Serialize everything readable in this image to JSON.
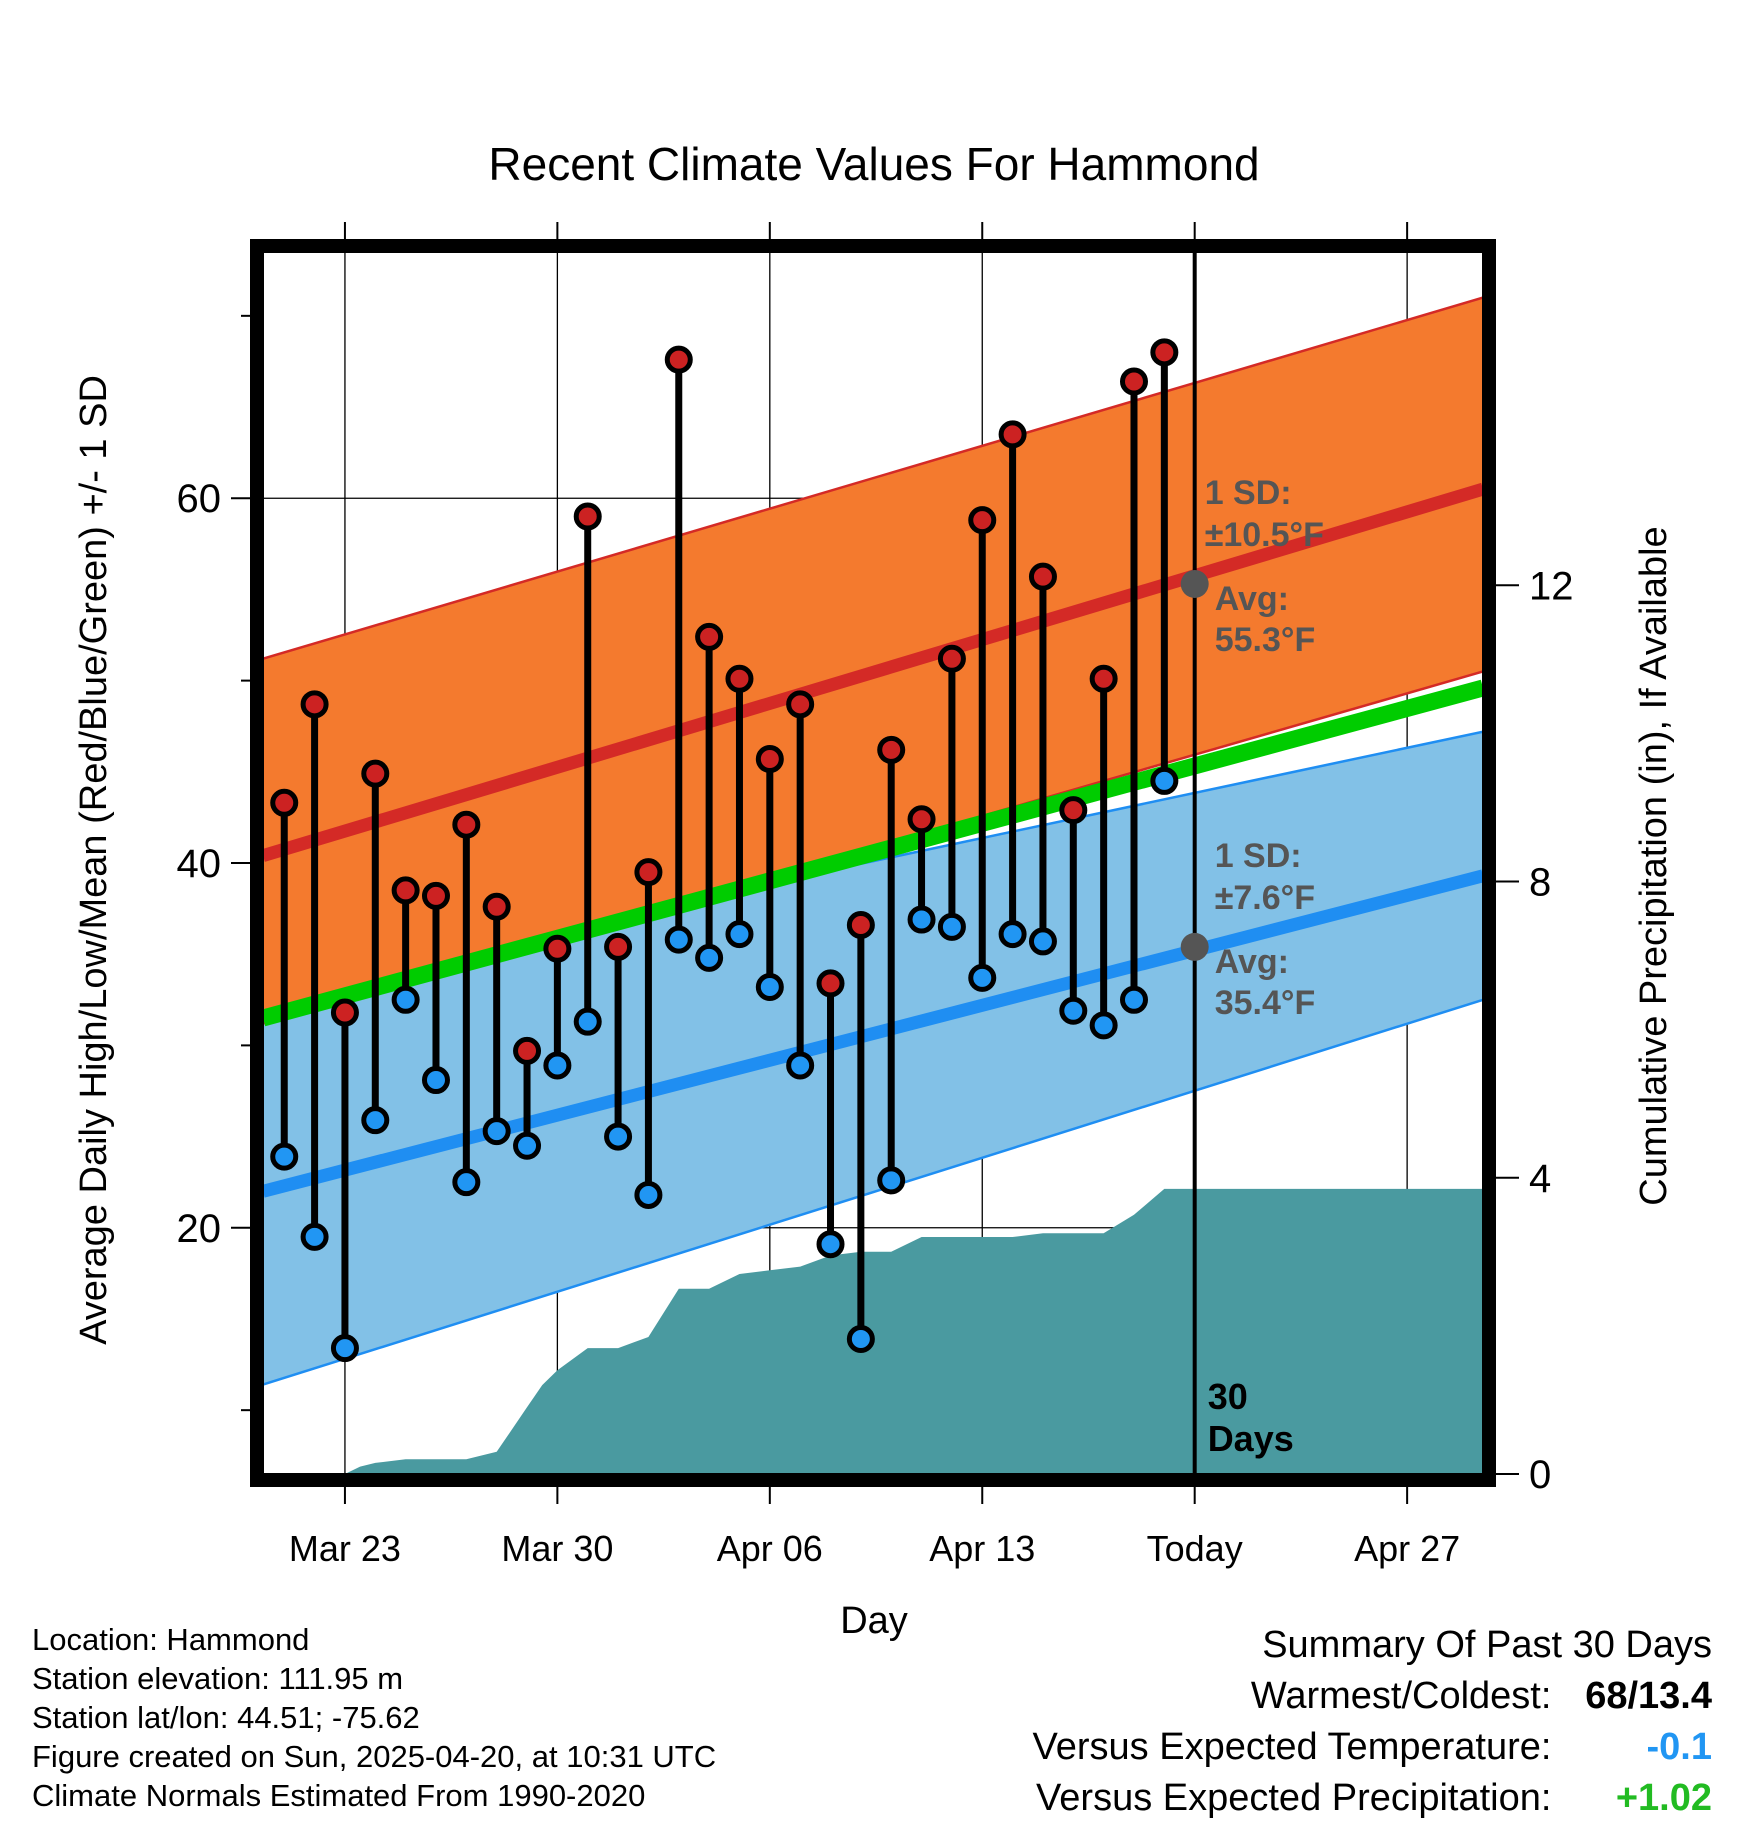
{
  "chart_data": {
    "type": "line",
    "title": "Recent Climate Values For Hammond",
    "xlabel": "Day",
    "ylabel": "Average Daily High/Low/Mean (Red/Blue/Green) +/- 1 SD",
    "y2label": "Cumulative Precipitation (in), If Available",
    "x_tick_labels": [
      "Mar 23",
      "Mar 30",
      "Apr 06",
      "Apr 13",
      "Today",
      "Apr 27"
    ],
    "x_tick_days": [
      3,
      10,
      17,
      24,
      31,
      38
    ],
    "today_day": 31,
    "xlim": [
      0.3,
      40.5
    ],
    "ylim": [
      6.5,
      73.5
    ],
    "y_ticks": [
      20,
      40,
      60
    ],
    "y2lim": [
      0,
      16.5
    ],
    "y2_ticks": [
      0,
      4,
      8,
      12
    ],
    "grid": true,
    "days": [
      1,
      2,
      3,
      4,
      5,
      6,
      7,
      8,
      9,
      10,
      11,
      12,
      13,
      14,
      15,
      16,
      17,
      18,
      19,
      20,
      21,
      22,
      23,
      24,
      25,
      26,
      27,
      28,
      29,
      30
    ],
    "observed_high": [
      43.3,
      48.7,
      31.8,
      44.9,
      38.5,
      38.2,
      42.1,
      37.6,
      29.7,
      35.3,
      59.0,
      35.4,
      39.5,
      67.6,
      52.4,
      50.1,
      45.7,
      48.7,
      33.4,
      36.6,
      46.2,
      42.4,
      51.2,
      58.8,
      63.5,
      55.7,
      42.9,
      50.1,
      66.4,
      68.0
    ],
    "observed_low": [
      23.9,
      19.5,
      13.4,
      25.9,
      32.5,
      28.1,
      22.5,
      25.3,
      24.5,
      28.9,
      31.3,
      25.0,
      21.8,
      35.8,
      34.8,
      36.1,
      33.2,
      28.9,
      19.1,
      13.9,
      22.6,
      36.9,
      36.5,
      33.7,
      36.1,
      35.7,
      31.9,
      31.1,
      32.5,
      44.5
    ],
    "normal_high": {
      "x": [
        0.3,
        40.5
      ],
      "y": [
        40.4,
        60.5
      ]
    },
    "normal_high_sd": {
      "x": [
        0.3,
        40.5
      ],
      "upper": [
        51.2,
        71.0
      ],
      "lower": [
        31.2,
        50.5
      ]
    },
    "normal_low": {
      "x": [
        0.3,
        40.5
      ],
      "y": [
        22.0,
        39.3
      ]
    },
    "normal_low_sd": {
      "x": [
        0.3,
        40.5
      ],
      "upper": [
        33.0,
        47.2
      ],
      "lower": [
        11.4,
        32.5
      ]
    },
    "normal_mean": {
      "x": [
        0.3,
        40.5
      ],
      "y": [
        31.5,
        49.6
      ]
    },
    "precip_cumulative": {
      "x": [
        0.3,
        3,
        3.5,
        4,
        5,
        6,
        7,
        8,
        9,
        9.5,
        10,
        11,
        12,
        13,
        14,
        15,
        16,
        17,
        18,
        19,
        20,
        21,
        22,
        23,
        24,
        25,
        26,
        27,
        28,
        29,
        30,
        31,
        32,
        35,
        38,
        40.5
      ],
      "y": [
        0,
        0,
        0.1,
        0.15,
        0.2,
        0.2,
        0.2,
        0.3,
        0.9,
        1.2,
        1.4,
        1.7,
        1.7,
        1.85,
        2.5,
        2.5,
        2.7,
        2.75,
        2.8,
        2.95,
        3.0,
        3.0,
        3.2,
        3.2,
        3.2,
        3.2,
        3.25,
        3.25,
        3.25,
        3.5,
        3.85,
        3.85,
        3.85,
        3.85,
        3.85,
        3.85
      ]
    },
    "annotations": {
      "high_sd_label": "1 SD:",
      "high_sd_value": "±10.5°F",
      "high_avg_label": "Avg:",
      "high_avg_value": "55.3°F",
      "low_sd_label": "1 SD:",
      "low_sd_value": "±7.6°F",
      "low_avg_label": "Avg:",
      "low_avg_value": "35.4°F",
      "window_value": "30",
      "window_unit": "Days"
    },
    "colors": {
      "high_band": "#f47a2e",
      "high_line": "#d42a26",
      "low_band": "#82c1e7",
      "low_line": "#1f8ef2",
      "mean_line": "#00cc00",
      "precip": "#4a9aa0",
      "high_marker": "#cc2222",
      "low_marker": "#2196f3",
      "annotation": "#555555"
    }
  },
  "footer": {
    "location": "Location: Hammond",
    "elevation": "Station elevation: 111.95 m",
    "latlon": "Station lat/lon: 44.51; -75.62",
    "created": "Figure created on Sun, 2025-04-20, at 10:31 UTC",
    "normals": "Climate Normals Estimated From 1990-2020"
  },
  "summary": {
    "title": "Summary Of Past 30 Days",
    "warm_cold_label": "Warmest/Coldest:",
    "warm_cold_value": "68/13.4",
    "temp_label": "Versus Expected Temperature:",
    "temp_value": "-0.1",
    "temp_color": "#2196f3",
    "precip_label": "Versus Expected Precipitation:",
    "precip_value": "+1.02",
    "precip_color": "#22bb22"
  }
}
